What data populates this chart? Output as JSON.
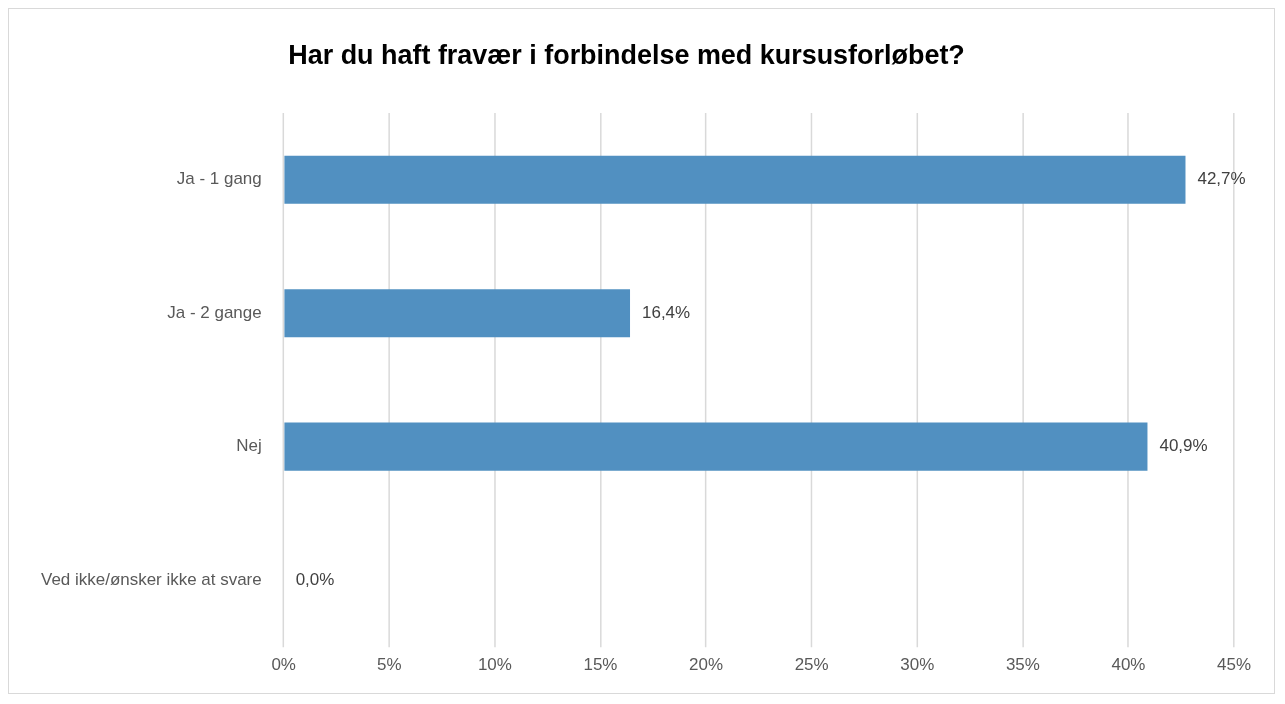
{
  "chart_data": {
    "type": "bar",
    "orientation": "horizontal",
    "title": "Har du haft fravær i forbindelse med kursusforløbet?",
    "categories": [
      "Ja - 1 gang",
      "Ja - 2 gange",
      "Nej",
      "Ved ikke/ønsker ikke at svare"
    ],
    "values": [
      42.7,
      16.4,
      40.9,
      0.0
    ],
    "value_labels": [
      "42,7%",
      "16,4%",
      "40,9%",
      "0,0%"
    ],
    "color": "#5190c1",
    "xlim": [
      0,
      45
    ],
    "xticks": [
      {
        "value": 0,
        "label": "0%"
      },
      {
        "value": 5,
        "label": "5%"
      },
      {
        "value": 10,
        "label": "10%"
      },
      {
        "value": 15,
        "label": "15%"
      },
      {
        "value": 20,
        "label": "20%"
      },
      {
        "value": 25,
        "label": "25%"
      },
      {
        "value": 30,
        "label": "30%"
      },
      {
        "value": 35,
        "label": "35%"
      },
      {
        "value": 40,
        "label": "40%"
      },
      {
        "value": 45,
        "label": "45%"
      }
    ],
    "grid": "x",
    "legend": false
  }
}
